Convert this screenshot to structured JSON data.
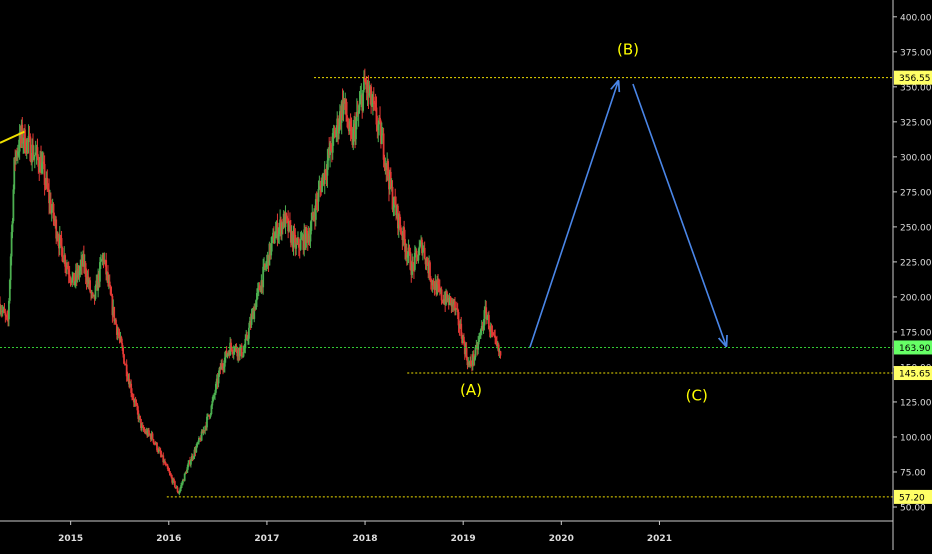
{
  "chart_data": {
    "type": "candlestick",
    "colors": {
      "background": "#000000",
      "axis": "#cccccc",
      "tick_label": "#dddddd",
      "up_candle": "#4caf50",
      "down_candle": "#e53935",
      "yellow_level": "#f0e000",
      "green_level": "#33cc33",
      "arrow": "#4a86e8",
      "wave_label": "#ffff00",
      "price_badge_yellow": "#ffff66",
      "price_badge_green": "#66ff66"
    },
    "x_axis": {
      "ticks": [
        "2015",
        "2016",
        "2017",
        "2018",
        "2019",
        "2020",
        "2021"
      ],
      "range": [
        2014.3,
        2023.4
      ]
    },
    "y_axis": {
      "ticks": [
        "50.00",
        "75.00",
        "100.00",
        "125.00",
        "150.00",
        "175.00",
        "200.00",
        "225.00",
        "250.00",
        "275.00",
        "300.00",
        "325.00",
        "350.00",
        "375.00",
        "400.00"
      ],
      "range": [
        40,
        412
      ]
    },
    "price_path": [
      [
        2014.3,
        195
      ],
      [
        2014.38,
        180
      ],
      [
        2014.45,
        300
      ],
      [
        2014.52,
        315
      ],
      [
        2014.62,
        305
      ],
      [
        2014.72,
        295
      ],
      [
        2014.8,
        270
      ],
      [
        2014.92,
        235
      ],
      [
        2015.05,
        210
      ],
      [
        2015.15,
        225
      ],
      [
        2015.25,
        195
      ],
      [
        2015.35,
        230
      ],
      [
        2015.45,
        190
      ],
      [
        2015.55,
        160
      ],
      [
        2015.65,
        130
      ],
      [
        2015.75,
        105
      ],
      [
        2015.85,
        100
      ],
      [
        2015.95,
        85
      ],
      [
        2016.05,
        70
      ],
      [
        2016.12,
        60
      ],
      [
        2016.22,
        80
      ],
      [
        2016.35,
        100
      ],
      [
        2016.45,
        120
      ],
      [
        2016.55,
        150
      ],
      [
        2016.65,
        165
      ],
      [
        2016.78,
        160
      ],
      [
        2016.9,
        195
      ],
      [
        2017.0,
        220
      ],
      [
        2017.1,
        245
      ],
      [
        2017.2,
        255
      ],
      [
        2017.32,
        235
      ],
      [
        2017.45,
        245
      ],
      [
        2017.55,
        275
      ],
      [
        2017.65,
        300
      ],
      [
        2017.75,
        325
      ],
      [
        2017.8,
        340
      ],
      [
        2017.88,
        310
      ],
      [
        2017.95,
        330
      ],
      [
        2018.02,
        352
      ],
      [
        2018.1,
        335
      ],
      [
        2018.2,
        310
      ],
      [
        2018.3,
        270
      ],
      [
        2018.4,
        245
      ],
      [
        2018.5,
        220
      ],
      [
        2018.6,
        238
      ],
      [
        2018.7,
        212
      ],
      [
        2018.8,
        200
      ],
      [
        2018.92,
        195
      ],
      [
        2019.0,
        175
      ],
      [
        2019.08,
        150
      ],
      [
        2019.15,
        160
      ],
      [
        2019.25,
        190
      ],
      [
        2019.32,
        170
      ],
      [
        2019.4,
        158
      ]
    ],
    "levels": [
      {
        "value": 356.55,
        "label": "356.55",
        "style": "yellow",
        "from_x": 2017.5
      },
      {
        "value": 163.9,
        "label": "163.90",
        "style": "green",
        "from_x": 2014.3
      },
      {
        "value": 145.65,
        "label": "145.65",
        "style": "yellow",
        "from_x": 2018.45
      },
      {
        "value": 57.2,
        "label": "57.20",
        "style": "yellow",
        "from_x": 2016.0
      }
    ],
    "trend_segment": {
      "from": [
        2014.3,
        310
      ],
      "to": [
        2014.55,
        318
      ]
    },
    "annotations": [
      {
        "text": "(A)",
        "x": 2019.1,
        "y": 130
      },
      {
        "text": "(B)",
        "x": 2020.7,
        "y": 373
      },
      {
        "text": "(C)",
        "x": 2021.4,
        "y": 126
      }
    ],
    "projection_arrows": [
      {
        "from": [
          2019.7,
          164
        ],
        "to": [
          2020.6,
          354
        ]
      },
      {
        "from": [
          2020.75,
          352
        ],
        "to": [
          2021.7,
          165
        ]
      }
    ]
  }
}
